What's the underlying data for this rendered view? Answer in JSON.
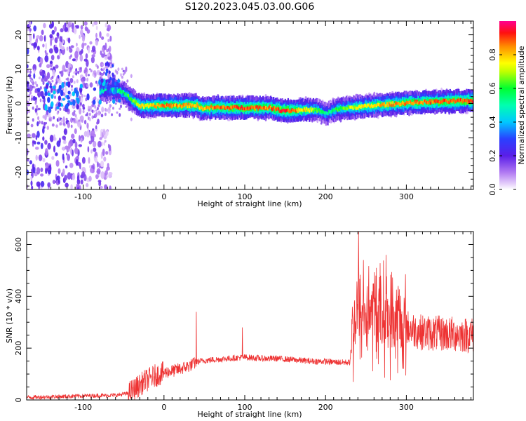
{
  "figure": {
    "title": "S120.2023.045.03.00.G06"
  },
  "chart_data": [
    {
      "type": "heatmap",
      "xlabel": "Height of straight line (km)",
      "ylabel": "Frequency (Hz)",
      "xlim": [
        -170,
        383
      ],
      "ylim": [
        -25,
        24
      ],
      "xticks": [
        -100,
        0,
        100,
        200,
        300
      ],
      "yticks": [
        -20,
        -10,
        0,
        10,
        20
      ],
      "colorbar": {
        "label": "Normalized spectral amplitude",
        "range": [
          0,
          1
        ],
        "ticks": [
          "0.0",
          "0.2",
          "0.4",
          "0.6",
          "0.8"
        ],
        "colors": [
          "#ffffff",
          "#d8b8f8",
          "#7a1fe6",
          "#2a20e8",
          "#00c8ff",
          "#00ff60",
          "#ffff00",
          "#ff8000",
          "#ff0000",
          "#ff0090"
        ]
      },
      "ridge": {
        "x": [
          -170,
          -120,
          -90,
          -70,
          -60,
          -50,
          -40,
          -30,
          0,
          20,
          40,
          45,
          60,
          100,
          130,
          145,
          160,
          175,
          190,
          200,
          215,
          230,
          250,
          270,
          300,
          330,
          383
        ],
        "y": [
          2,
          2,
          3,
          4,
          4,
          3,
          1,
          -0.8,
          -0.6,
          -0.6,
          -0.5,
          -1.4,
          -1.2,
          -1.2,
          -1.2,
          -2,
          -2,
          -1.8,
          -2,
          -3,
          -1.5,
          -1.2,
          -0.8,
          -0.4,
          0.2,
          0.5,
          0.8
        ]
      },
      "ridge_amplitude": {
        "x": [
          -170,
          -70,
          -50,
          -30,
          0,
          40,
          60,
          100,
          130,
          145,
          170,
          200,
          230,
          260,
          300,
          383
        ],
        "values": [
          0.35,
          0.5,
          0.55,
          0.75,
          0.85,
          0.8,
          0.85,
          0.9,
          0.85,
          0.95,
          0.8,
          0.5,
          0.7,
          0.8,
          0.85,
          0.9
        ]
      }
    },
    {
      "type": "line",
      "xlabel": "Height of straight line (km)",
      "ylabel": "SNR (10 * v/v)",
      "xlim": [
        -170,
        383
      ],
      "ylim": [
        0,
        650
      ],
      "xticks": [
        -100,
        0,
        100,
        200,
        300
      ],
      "yticks": [
        0,
        200,
        400,
        600
      ],
      "series_color": "#ee3333",
      "x": [
        -170,
        -140,
        -110,
        -80,
        -60,
        -45,
        -35,
        -25,
        -10,
        0,
        15,
        30,
        40,
        45,
        60,
        80,
        100,
        120,
        140,
        160,
        180,
        200,
        220,
        230,
        235,
        240,
        250,
        265,
        280,
        300,
        320,
        350,
        383
      ],
      "y": [
        10,
        12,
        15,
        17,
        18,
        25,
        45,
        70,
        95,
        105,
        115,
        130,
        145,
        150,
        155,
        160,
        165,
        160,
        160,
        155,
        150,
        148,
        145,
        145,
        300,
        330,
        340,
        330,
        310,
        280,
        260,
        255,
        250
      ],
      "spikes": [
        {
          "x": 40,
          "y": 340
        },
        {
          "x": 97,
          "y": 280
        },
        {
          "x": 241,
          "y": 650
        },
        {
          "x": 247,
          "y": 540
        },
        {
          "x": 263,
          "y": 510
        },
        {
          "x": 275,
          "y": 560
        },
        {
          "x": 290,
          "y": 440
        }
      ]
    }
  ]
}
